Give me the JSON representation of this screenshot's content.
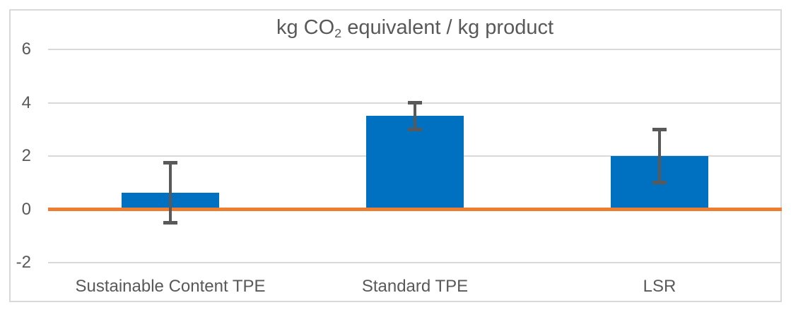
{
  "chart_data": {
    "type": "bar",
    "title": "kg CO2 equivalent / kg product",
    "title_parts": {
      "pre": "kg CO",
      "sub": "2",
      "post": " equivalent / kg product"
    },
    "categories": [
      "Sustainable Content TPE",
      "Standard TPE",
      "LSR"
    ],
    "values": [
      0.63,
      3.5,
      2.0
    ],
    "error_high": [
      1.75,
      4.0,
      3.0
    ],
    "error_low": [
      -0.5,
      3.0,
      1.0
    ],
    "y_ticks": [
      6,
      4,
      2,
      0,
      -2
    ],
    "ylim": [
      -2,
      6
    ],
    "grid": true,
    "legend": false,
    "xlabel": "",
    "ylabel": "",
    "colors": {
      "bar": "#0070C0",
      "zero_line": "#ED7D31",
      "gridline": "#D9D9D9",
      "frame_border": "#D9D9D9",
      "error_bar": "#595959",
      "text": "#595959",
      "background": "#FFFFFF"
    }
  }
}
